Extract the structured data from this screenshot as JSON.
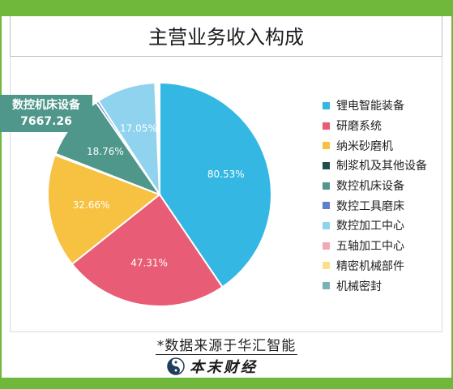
{
  "title": "主营业务收入构成",
  "chart_data": {
    "type": "pie",
    "categories": [
      "锂电智能装备",
      "研磨系统",
      "纳米砂磨机",
      "制浆机及其他设备",
      "数控机床设备",
      "数控工具磨床",
      "数控加工中心",
      "五轴加工中心",
      "精密机械部件",
      "机械密封"
    ],
    "values": [
      80.53,
      47.31,
      32.66,
      0.4,
      18.76,
      0.77,
      17.05,
      0.4,
      0.5,
      0.4
    ],
    "slice_labels": [
      "80.53%",
      "47.31%",
      "32.66%",
      "",
      "18.76%",
      "",
      "17.05%",
      "",
      "",
      ""
    ],
    "colors": [
      "#35b7e3",
      "#e85d75",
      "#f7c142",
      "#1f4e4a",
      "#4f968b",
      "#5b7fd1",
      "#8fd3ef",
      "#f2a7b3",
      "#fbe08c",
      "#7ab2ba"
    ],
    "callout": {
      "category": "数控机床设备",
      "value": "7667.26"
    },
    "legend_position": "right"
  },
  "footer": {
    "source": "*数据来源于华汇智能",
    "brand": "本末财经",
    "brand_icon": "yin-yang-logo-icon"
  }
}
